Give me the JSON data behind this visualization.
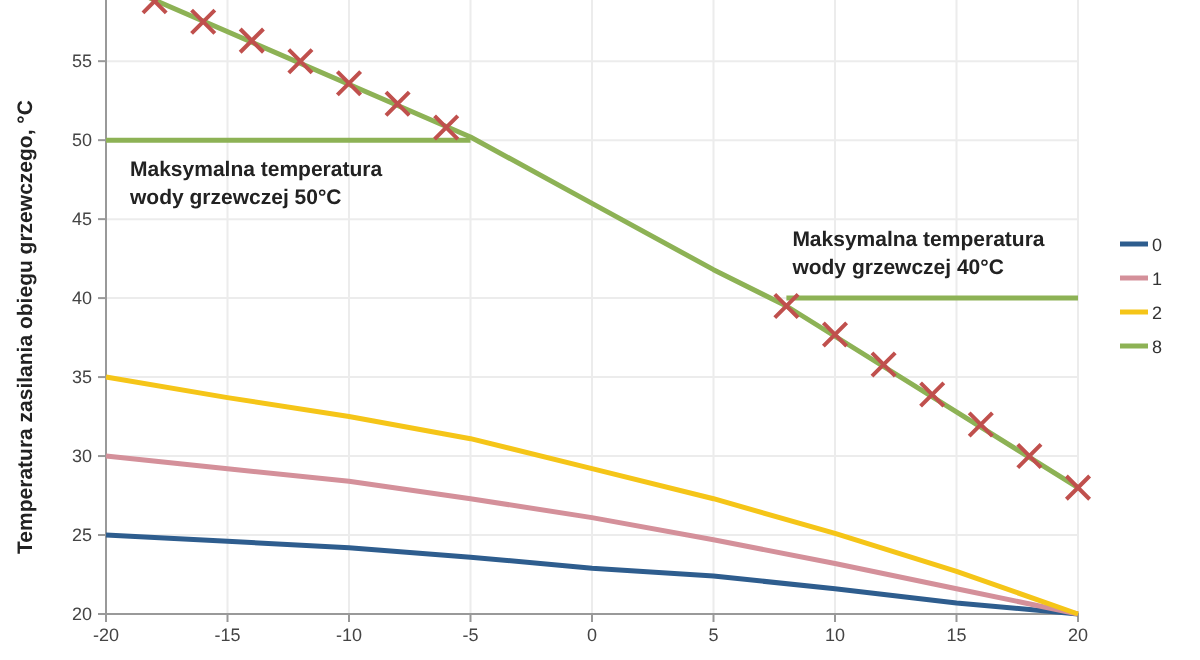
{
  "chart_data": {
    "type": "line",
    "ylabel": "Temperatura zasilania obiegu grzewczego, °C",
    "x": [
      -20,
      -15,
      -10,
      -5,
      0,
      5,
      10,
      15,
      20
    ],
    "xlim": [
      -20,
      20
    ],
    "xticks": [
      -20,
      -15,
      -10,
      -5,
      0,
      5,
      10,
      15,
      20
    ],
    "ylim": [
      20,
      59
    ],
    "yticks": [
      20,
      25,
      30,
      35,
      40,
      45,
      50,
      55
    ],
    "grid": true,
    "legend": "right",
    "marker": "none",
    "series": [
      {
        "name": "0",
        "color": "#2e5d8e",
        "values": [
          25,
          24.6,
          24.2,
          23.6,
          22.9,
          22.4,
          21.6,
          20.7,
          20
        ]
      },
      {
        "name": "1",
        "color": "#d4909a",
        "values": [
          30,
          29.2,
          28.4,
          27.3,
          26.1,
          24.7,
          23.2,
          21.6,
          20
        ]
      },
      {
        "name": "2",
        "color": "#f5c518",
        "values": [
          35,
          33.7,
          32.5,
          31.1,
          29.2,
          27.3,
          25.1,
          22.7,
          20
        ]
      },
      {
        "name": "8",
        "color": "#8db255",
        "x": [
          -18.2,
          -5,
          0,
          5,
          8,
          20
        ],
        "values": [
          59,
          50.2,
          46,
          41.8,
          39.5,
          28
        ]
      },
      {
        "color": "#8db255",
        "x": [
          -20,
          -5
        ],
        "values": [
          50,
          50
        ]
      },
      {
        "color": "#8db255",
        "x": [
          8,
          20
        ],
        "values": [
          40,
          40
        ]
      },
      {
        "type": "scatter",
        "marker": "cross",
        "color": "#c0504d",
        "x": [
          -18,
          -16,
          -14,
          -12,
          -10,
          -8,
          -6,
          8,
          10,
          12,
          14,
          16,
          18,
          20
        ],
        "values": [
          58.8,
          57.5,
          56.3,
          55,
          53.6,
          52.3,
          50.8,
          39.5,
          37.7,
          35.8,
          33.9,
          32,
          30,
          28
        ]
      }
    ],
    "annotations": [
      {
        "text": "Maksymalna temperatura wody grzewczej 50°C",
        "x": -20,
        "y": 50
      },
      {
        "text": "Maksymalna temperatura wody grzewczej 40°C",
        "x": 8,
        "y": 40
      }
    ]
  }
}
